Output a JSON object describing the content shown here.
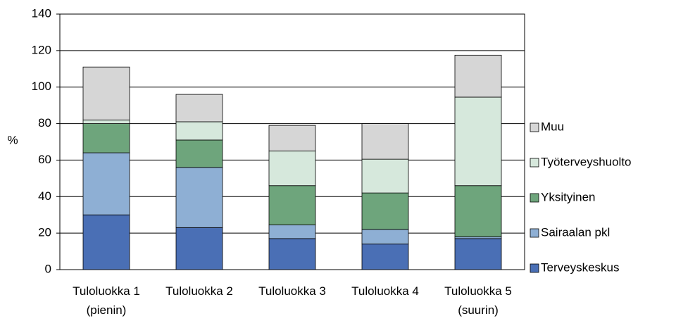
{
  "chart_data": {
    "type": "stacked_bar",
    "y_label": "%",
    "categories": [
      "Tuloluokka 1\n(pienin)",
      "Tuloluokka 2",
      "Tuloluokka 3",
      "Tuloluokka 4",
      "Tuloluokka 5\n(suurin)"
    ],
    "series": [
      {
        "name": "Terveyskeskus",
        "color": "#4a6fb5",
        "values": [
          30,
          23,
          17,
          14,
          17
        ]
      },
      {
        "name": "Sairaalan pkl",
        "color": "#8eafd4",
        "values": [
          34,
          33,
          7.5,
          8,
          1
        ]
      },
      {
        "name": "Yksityinen",
        "color": "#6ea57c",
        "values": [
          16,
          15,
          21.5,
          20,
          28
        ]
      },
      {
        "name": "Työterveyshuolto",
        "color": "#d6e8dc",
        "values": [
          2,
          10,
          19,
          18.5,
          48.5
        ]
      },
      {
        "name": "Muu",
        "color": "#d6d6d6",
        "values": [
          29,
          15,
          14,
          19.5,
          23
        ]
      }
    ],
    "ylim": [
      0,
      140
    ],
    "yticks": [
      0,
      20,
      40,
      60,
      80,
      100,
      120,
      140
    ],
    "grid": true,
    "legend": "right"
  }
}
